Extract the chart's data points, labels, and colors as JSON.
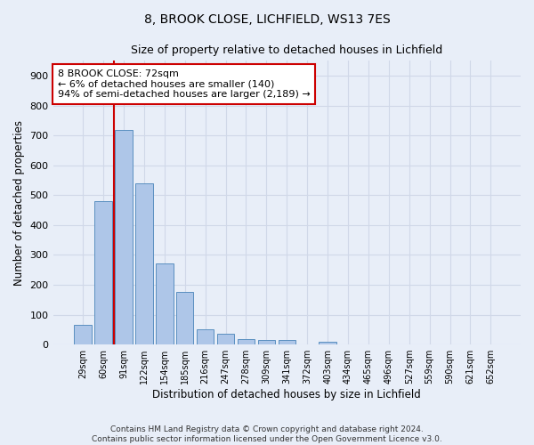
{
  "title1": "8, BROOK CLOSE, LICHFIELD, WS13 7ES",
  "title2": "Size of property relative to detached houses in Lichfield",
  "xlabel": "Distribution of detached houses by size in Lichfield",
  "ylabel": "Number of detached properties",
  "categories": [
    "29sqm",
    "60sqm",
    "91sqm",
    "122sqm",
    "154sqm",
    "185sqm",
    "216sqm",
    "247sqm",
    "278sqm",
    "309sqm",
    "341sqm",
    "372sqm",
    "403sqm",
    "434sqm",
    "465sqm",
    "496sqm",
    "527sqm",
    "559sqm",
    "590sqm",
    "621sqm",
    "652sqm"
  ],
  "values": [
    65,
    480,
    720,
    540,
    270,
    175,
    50,
    35,
    17,
    14,
    14,
    0,
    8,
    0,
    0,
    0,
    0,
    0,
    0,
    0,
    0
  ],
  "bar_color": "#aec6e8",
  "bar_edge_color": "#5a8fc0",
  "annotation_line1": "8 BROOK CLOSE: 72sqm",
  "annotation_line2": "← 6% of detached houses are smaller (140)",
  "annotation_line3": "94% of semi-detached houses are larger (2,189) →",
  "annotation_box_color": "#ffffff",
  "annotation_box_edge": "#cc0000",
  "vline_color": "#cc0000",
  "grid_color": "#d0d8e8",
  "background_color": "#e8eef8",
  "ylim": [
    0,
    950
  ],
  "yticks": [
    0,
    100,
    200,
    300,
    400,
    500,
    600,
    700,
    800,
    900
  ],
  "footnote1": "Contains HM Land Registry data © Crown copyright and database right 2024.",
  "footnote2": "Contains public sector information licensed under the Open Government Licence v3.0."
}
